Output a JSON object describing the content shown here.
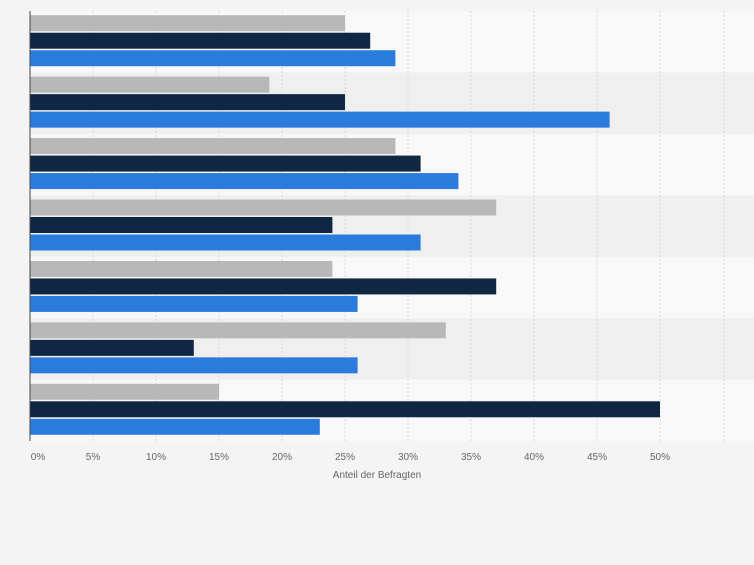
{
  "chart_data": {
    "type": "bar",
    "orientation": "horizontal",
    "categories": [
      "",
      "",
      "",
      "",
      "",
      "",
      ""
    ],
    "series": [
      {
        "color": "#b8b8b8",
        "values": [
          25,
          19,
          29,
          37,
          24,
          33,
          15
        ]
      },
      {
        "color": "#0f2742",
        "values": [
          27,
          25,
          31,
          24,
          37,
          13,
          50
        ]
      },
      {
        "color": "#2b7bdd",
        "values": [
          29,
          46,
          34,
          31,
          26,
          26,
          23
        ]
      }
    ],
    "xlabel": "Anteil der Befragten",
    "ylabel": "",
    "xlim": [
      0,
      55
    ],
    "xticks": [
      0,
      5,
      10,
      15,
      20,
      25,
      30,
      35,
      40,
      45,
      50
    ],
    "tick_labels": [
      "0%",
      "5%",
      "10%",
      "15%",
      "20%",
      "25%",
      "30%",
      "35%",
      "40%",
      "45%",
      "50%"
    ],
    "grid": true,
    "legend": "none",
    "colors": {
      "background": "#f4f4f4",
      "band_light": "#f8f8f8",
      "band_dark": "#efefef",
      "grid": "#d8d8d8",
      "axis": "#444444",
      "text": "#666666"
    }
  }
}
